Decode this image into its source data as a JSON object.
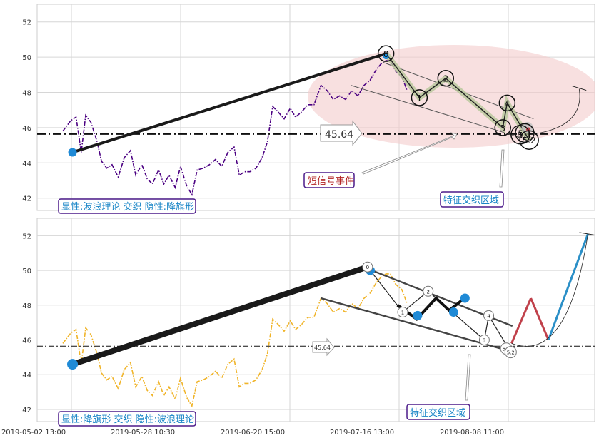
{
  "chart_data": [
    {
      "type": "line",
      "panel": "top",
      "ylim": [
        41.3,
        53
      ],
      "yticks": [
        42,
        44,
        46,
        48,
        50,
        52
      ],
      "grid": true,
      "series": [
        {
          "color": "#4b0082",
          "style": "dashdot",
          "points": [
            [
              0.0,
              45.8
            ],
            [
              0.9,
              46.4
            ],
            [
              1.5,
              46.6
            ],
            [
              2.1,
              44.6
            ],
            [
              2.6,
              46.7
            ],
            [
              3.2,
              46.3
            ],
            [
              3.9,
              45.2
            ],
            [
              4.4,
              44.1
            ],
            [
              5.0,
              43.7
            ],
            [
              5.6,
              43.9
            ],
            [
              6.3,
              43.2
            ],
            [
              7.0,
              44.3
            ],
            [
              7.7,
              44.7
            ],
            [
              8.3,
              43.3
            ],
            [
              9.0,
              43.9
            ],
            [
              9.6,
              43.1
            ],
            [
              10.2,
              42.8
            ],
            [
              10.9,
              43.6
            ],
            [
              11.5,
              42.8
            ],
            [
              12.1,
              43.3
            ],
            [
              12.8,
              42.6
            ],
            [
              13.4,
              43.8
            ],
            [
              14.1,
              42.7
            ],
            [
              14.7,
              42.2
            ],
            [
              15.3,
              43.6
            ],
            [
              16.0,
              43.7
            ],
            [
              16.7,
              43.9
            ],
            [
              17.4,
              44.2
            ],
            [
              18.1,
              43.8
            ],
            [
              18.8,
              44.6
            ],
            [
              19.5,
              44.9
            ],
            [
              20.1,
              43.3
            ],
            [
              20.7,
              43.5
            ],
            [
              21.3,
              43.5
            ],
            [
              22.0,
              43.7
            ],
            [
              22.7,
              44.3
            ],
            [
              23.3,
              45.2
            ],
            [
              23.9,
              47.2
            ],
            [
              24.5,
              46.9
            ],
            [
              25.2,
              46.5
            ],
            [
              25.9,
              47.1
            ],
            [
              26.5,
              46.6
            ],
            [
              27.2,
              46.9
            ],
            [
              27.9,
              47.3
            ],
            [
              28.6,
              47.3
            ],
            [
              29.4,
              48.4
            ],
            [
              30.1,
              48.1
            ],
            [
              30.8,
              47.6
            ],
            [
              31.5,
              47.8
            ],
            [
              32.2,
              47.6
            ],
            [
              32.9,
              48.1
            ],
            [
              33.6,
              47.8
            ],
            [
              34.3,
              48.4
            ],
            [
              35.0,
              48.7
            ],
            [
              35.7,
              49.3
            ],
            [
              36.2,
              49.6
            ],
            [
              36.8,
              49.8
            ],
            [
              37.3,
              49.8
            ],
            [
              37.9,
              49.2
            ],
            [
              38.6,
              48.9
            ],
            [
              39.2,
              48.1
            ]
          ]
        }
      ],
      "horizontal_line": {
        "y": 45.64,
        "label": "45.64"
      },
      "wave_points": [
        {
          "label": "0",
          "x": 36.8,
          "y": 50.2
        },
        {
          "label": "1",
          "x": 40.6,
          "y": 47.7
        },
        {
          "label": "2",
          "x": 43.6,
          "y": 48.8
        },
        {
          "label": "3",
          "x": 50.1,
          "y": 46.0
        },
        {
          "label": "4",
          "x": 50.6,
          "y": 47.4
        },
        {
          "label": "5",
          "x": 52.1,
          "y": 45.6
        },
        {
          "label": "5.1",
          "x": 52.6,
          "y": 45.7
        },
        {
          "label": "5.2",
          "x": 53.1,
          "y": 45.3
        }
      ],
      "annotations": [
        "短信号事件",
        "特征交织区域",
        "显性:波浪理论 交织 隐性:降旗形"
      ]
    },
    {
      "type": "line",
      "panel": "bottom",
      "ylim": [
        41.3,
        53
      ],
      "yticks": [
        42,
        44,
        46,
        48,
        50,
        52
      ],
      "grid": true,
      "series": [
        {
          "color": "#f0b429",
          "style": "dashdot",
          "points": [
            [
              0.0,
              45.8
            ],
            [
              0.9,
              46.4
            ],
            [
              1.5,
              46.6
            ],
            [
              2.1,
              44.6
            ],
            [
              2.6,
              46.7
            ],
            [
              3.2,
              46.3
            ],
            [
              3.9,
              45.2
            ],
            [
              4.4,
              44.1
            ],
            [
              5.0,
              43.7
            ],
            [
              5.6,
              43.9
            ],
            [
              6.3,
              43.2
            ],
            [
              7.0,
              44.3
            ],
            [
              7.7,
              44.7
            ],
            [
              8.3,
              43.3
            ],
            [
              9.0,
              43.9
            ],
            [
              9.6,
              43.1
            ],
            [
              10.2,
              42.8
            ],
            [
              10.9,
              43.6
            ],
            [
              11.5,
              42.8
            ],
            [
              12.1,
              43.3
            ],
            [
              12.8,
              42.6
            ],
            [
              13.4,
              43.8
            ],
            [
              14.1,
              42.7
            ],
            [
              14.7,
              42.2
            ],
            [
              15.3,
              43.6
            ],
            [
              16.0,
              43.7
            ],
            [
              16.7,
              43.9
            ],
            [
              17.4,
              44.2
            ],
            [
              18.1,
              43.8
            ],
            [
              18.8,
              44.6
            ],
            [
              19.5,
              44.9
            ],
            [
              20.1,
              43.3
            ],
            [
              20.7,
              43.5
            ],
            [
              21.3,
              43.5
            ],
            [
              22.0,
              43.7
            ],
            [
              22.7,
              44.3
            ],
            [
              23.3,
              45.2
            ],
            [
              23.9,
              47.2
            ],
            [
              24.5,
              46.9
            ],
            [
              25.2,
              46.5
            ],
            [
              25.9,
              47.1
            ],
            [
              26.5,
              46.6
            ],
            [
              27.2,
              46.9
            ],
            [
              27.9,
              47.3
            ],
            [
              28.6,
              47.3
            ],
            [
              29.4,
              48.4
            ],
            [
              30.1,
              48.1
            ],
            [
              30.8,
              47.6
            ],
            [
              31.5,
              47.8
            ],
            [
              32.2,
              47.6
            ],
            [
              32.9,
              48.1
            ],
            [
              33.6,
              47.8
            ],
            [
              34.3,
              48.4
            ],
            [
              35.0,
              48.7
            ],
            [
              35.7,
              49.3
            ],
            [
              36.2,
              49.6
            ],
            [
              36.8,
              49.8
            ],
            [
              37.3,
              49.8
            ],
            [
              37.9,
              49.2
            ],
            [
              38.6,
              48.9
            ],
            [
              39.2,
              48.1
            ]
          ]
        }
      ],
      "horizontal_line": {
        "y": 45.64,
        "label": "45.64"
      },
      "wave_points": [
        {
          "label": "0",
          "x": 34.7,
          "y": 50.2
        },
        {
          "label": "1",
          "x": 38.7,
          "y": 47.6
        },
        {
          "label": "2",
          "x": 41.6,
          "y": 48.8
        },
        {
          "label": "3",
          "x": 48.0,
          "y": 46.0
        },
        {
          "label": "4",
          "x": 48.5,
          "y": 47.4
        },
        {
          "label": "5.1",
          "x": 50.5,
          "y": 45.5
        },
        {
          "label": "5.2",
          "x": 51.0,
          "y": 45.3
        }
      ],
      "projection": [
        [
          51.1,
          45.8
        ],
        [
          53.3,
          48.4
        ],
        [
          55.3,
          46.0
        ],
        [
          59.8,
          52.1
        ]
      ],
      "xticks": [
        "2019-05-02 13:00",
        "2019-05-28 10:30",
        "2019-06-20 15:00",
        "2019-07-16 13:00",
        "2019-08-08 11:00"
      ],
      "annotations": [
        "特征交织区域",
        "显性:降旗形 交织 隐性:波浪理论"
      ]
    }
  ],
  "colors": {
    "purple": "#4b0082",
    "orange": "#f0b429",
    "blue": "#1f8ad6",
    "text_blue": "#1a86c7",
    "text_red": "#b22222",
    "box_border": "#4b1a8a",
    "ellipse": "#f4cccc"
  }
}
